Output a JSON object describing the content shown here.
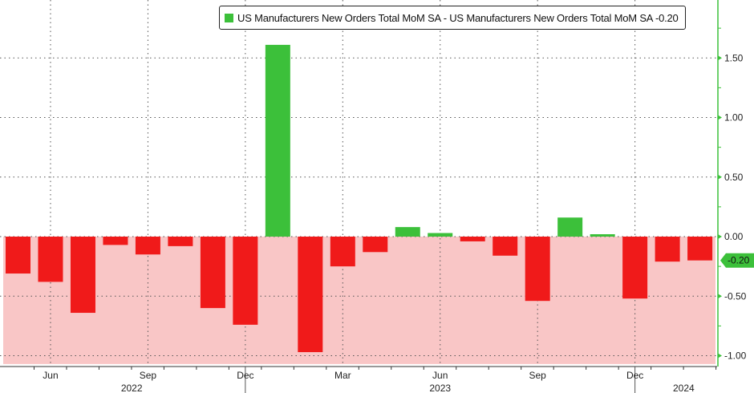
{
  "chart_data": {
    "type": "bar",
    "title": "",
    "legend": {
      "label": "US Manufacturers New Orders Total MoM SA - US Manufacturers New Orders Total MoM SA -0.20",
      "placement": "top-right"
    },
    "categories": [
      "May 2022",
      "Jun 2022",
      "Jul 2022",
      "Aug 2022",
      "Sep 2022",
      "Oct 2022",
      "Nov 2022",
      "Dec 2022",
      "Jan 2023",
      "Feb 2023",
      "Mar 2023",
      "Apr 2023",
      "May 2023",
      "Jun 2023",
      "Jul 2023",
      "Aug 2023",
      "Sep 2023",
      "Oct 2023",
      "Nov 2023",
      "Dec 2023",
      "Jan 2024",
      "Feb 2024"
    ],
    "values": [
      -0.31,
      -0.38,
      -0.64,
      -0.07,
      -0.15,
      -0.08,
      -0.6,
      -0.74,
      1.61,
      -0.97,
      -0.25,
      -0.13,
      0.08,
      0.03,
      -0.04,
      -0.16,
      -0.54,
      0.16,
      0.02,
      -0.52,
      -0.21,
      -0.2
    ],
    "ylim": [
      -1.07,
      2.0
    ],
    "y_ticks": [
      "1.50",
      "1.00",
      "0.50",
      "0.00",
      "-0.50",
      "-1.00"
    ],
    "y_tick_values": [
      1.5,
      1.0,
      0.5,
      0.0,
      -0.5,
      -1.0
    ],
    "x_tick_labels": [
      {
        "label": "Jun",
        "index": 1
      },
      {
        "label": "Sep",
        "index": 4
      },
      {
        "label": "Dec",
        "index": 7
      },
      {
        "label": "Mar",
        "index": 10
      },
      {
        "label": "Jun",
        "index": 13
      },
      {
        "label": "Sep",
        "index": 16
      },
      {
        "label": "Dec",
        "index": 19
      }
    ],
    "year_labels": [
      {
        "label": "2022",
        "index": 3.5
      },
      {
        "label": "2023",
        "index": 13
      },
      {
        "label": "2024",
        "index": 20.5
      }
    ],
    "last_value_label": "-0.20",
    "last_value": -0.2,
    "colors": {
      "positive": "#3cc03a",
      "negative": "#f01a1a",
      "shade": "#f9c6c6",
      "axis": "#3cc03a"
    },
    "grid": true,
    "xlabel": "",
    "ylabel": ""
  }
}
